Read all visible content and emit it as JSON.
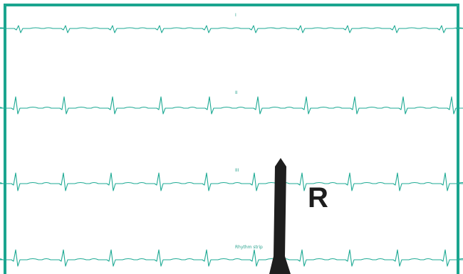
{
  "colors": {
    "border": "#1aa58f",
    "trace": "#1eaa94",
    "arrow": "#1e1e1e",
    "background": "#ffffff"
  },
  "leads": [
    {
      "name": "I"
    },
    {
      "name": "II"
    },
    {
      "name": "III"
    },
    {
      "name": "Rhythm strip"
    }
  ],
  "marker": {
    "label": "R",
    "shape": "upward-arrow"
  }
}
